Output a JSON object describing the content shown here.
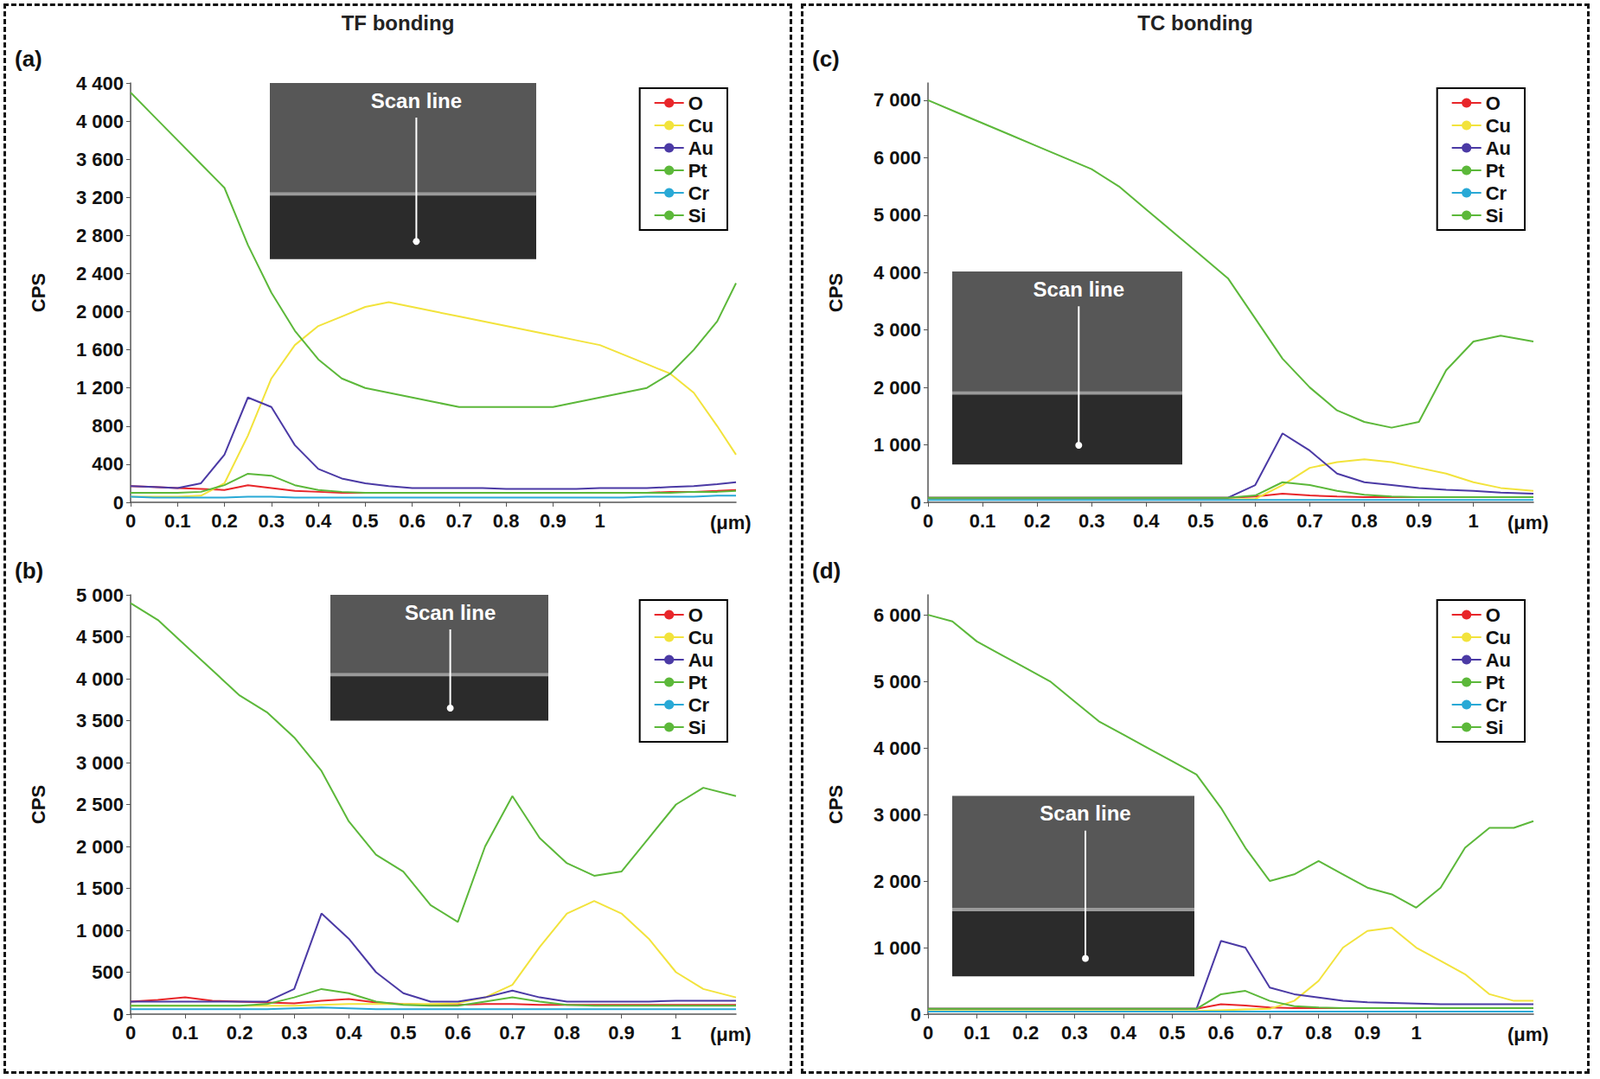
{
  "header": [
    "TF bonding",
    "TC bonding"
  ],
  "chart_data": [
    {
      "type": "line",
      "panel_label": "(a)",
      "inset_label": "Scan line",
      "x_label": "(μm)",
      "y_label": "CPS",
      "grid": false,
      "legend": "top-right",
      "xlim": [
        0,
        1.29
      ],
      "xticks": [
        0,
        0.1,
        0.2,
        0.3,
        0.4,
        0.5,
        0.6,
        0.7,
        0.8,
        0.9,
        1.0
      ],
      "ylim": [
        0,
        4400
      ],
      "yticks": [
        0,
        400,
        800,
        {
          "value": 1200,
          "label": "1 200"
        },
        {
          "value": 1600,
          "label": "1 600"
        },
        {
          "value": 2000,
          "label": "2 000"
        },
        {
          "value": 2400,
          "label": "2 400"
        },
        {
          "value": 2800,
          "label": "2 800"
        },
        {
          "value": 3200,
          "label": "3 200"
        },
        {
          "value": 3600,
          "label": "3 600"
        },
        {
          "value": 4000,
          "label": "4 000"
        },
        {
          "value": 4400,
          "label": "4 400"
        }
      ],
      "x": [
        0,
        0.05,
        0.1,
        0.15,
        0.2,
        0.25,
        0.3,
        0.35,
        0.4,
        0.45,
        0.5,
        0.55,
        0.6,
        0.65,
        0.7,
        0.75,
        0.8,
        0.85,
        0.9,
        0.95,
        1.0,
        1.05,
        1.1,
        1.15,
        1.2,
        1.25,
        1.29
      ],
      "series": [
        {
          "name": "O",
          "color": "#e8262a",
          "values": [
            170,
            160,
            150,
            140,
            130,
            180,
            150,
            120,
            110,
            100,
            100,
            100,
            100,
            100,
            100,
            100,
            100,
            100,
            100,
            100,
            100,
            100,
            100,
            110,
            110,
            120,
            130
          ]
        },
        {
          "name": "Cu",
          "color": "#f2e33c",
          "values": [
            60,
            60,
            60,
            70,
            200,
            700,
            1300,
            1650,
            1850,
            1950,
            2050,
            2100,
            2050,
            2000,
            1950,
            1900,
            1850,
            1800,
            1750,
            1700,
            1650,
            1550,
            1450,
            1350,
            1150,
            800,
            500
          ]
        },
        {
          "name": "Au",
          "color": "#4b3aa5",
          "values": [
            170,
            160,
            150,
            200,
            500,
            1100,
            1000,
            600,
            350,
            250,
            200,
            170,
            150,
            150,
            150,
            150,
            140,
            140,
            140,
            140,
            150,
            150,
            150,
            160,
            170,
            190,
            210
          ]
        },
        {
          "name": "Pt",
          "color": "#5cb83a",
          "values": [
            100,
            100,
            100,
            110,
            180,
            300,
            280,
            180,
            130,
            110,
            100,
            100,
            100,
            100,
            100,
            100,
            100,
            100,
            100,
            100,
            100,
            100,
            100,
            100,
            110,
            110,
            120
          ]
        },
        {
          "name": "Cr",
          "color": "#29a9d6",
          "values": [
            60,
            50,
            50,
            50,
            50,
            60,
            60,
            50,
            50,
            50,
            50,
            50,
            50,
            50,
            50,
            50,
            50,
            50,
            50,
            50,
            50,
            50,
            60,
            60,
            60,
            70,
            70
          ]
        },
        {
          "name": "Si",
          "color": "#5cb83a",
          "values": [
            4300,
            4050,
            3800,
            3550,
            3300,
            2700,
            2200,
            1800,
            1500,
            1300,
            1200,
            1150,
            1100,
            1050,
            1000,
            1000,
            1000,
            1000,
            1000,
            1050,
            1100,
            1150,
            1200,
            1350,
            1600,
            1900,
            2300
          ]
        }
      ]
    },
    {
      "type": "line",
      "panel_label": "(b)",
      "inset_label": "Scan line",
      "x_label": "(μm)",
      "y_label": "CPS",
      "grid": false,
      "legend": "top-right",
      "xlim": [
        0,
        1.11
      ],
      "xticks": [
        0,
        0.1,
        0.2,
        0.3,
        0.4,
        0.5,
        0.6,
        0.7,
        0.8,
        0.9,
        1.0
      ],
      "ylim": [
        0,
        5000
      ],
      "yticks": [
        0,
        500,
        {
          "value": 1000,
          "label": "1 000"
        },
        {
          "value": 1500,
          "label": "1 500"
        },
        {
          "value": 2000,
          "label": "2 000"
        },
        {
          "value": 2500,
          "label": "2 500"
        },
        {
          "value": 3000,
          "label": "3 000"
        },
        {
          "value": 3500,
          "label": "3 500"
        },
        {
          "value": 4000,
          "label": "4 000"
        },
        {
          "value": 4500,
          "label": "4 500"
        },
        {
          "value": 5000,
          "label": "5 000"
        }
      ],
      "x": [
        0,
        0.05,
        0.1,
        0.15,
        0.2,
        0.25,
        0.3,
        0.35,
        0.4,
        0.45,
        0.5,
        0.55,
        0.6,
        0.65,
        0.7,
        0.75,
        0.8,
        0.85,
        0.9,
        0.95,
        1.0,
        1.05,
        1.11
      ],
      "series": [
        {
          "name": "O",
          "color": "#e8262a",
          "values": [
            150,
            170,
            200,
            160,
            150,
            140,
            130,
            160,
            180,
            140,
            120,
            110,
            110,
            120,
            120,
            110,
            110,
            110,
            110,
            110,
            110,
            110,
            110
          ]
        },
        {
          "name": "Cu",
          "color": "#f2e33c",
          "values": [
            100,
            100,
            100,
            100,
            100,
            100,
            100,
            110,
            120,
            120,
            120,
            120,
            130,
            200,
            350,
            800,
            1200,
            1350,
            1200,
            900,
            500,
            300,
            200
          ]
        },
        {
          "name": "Au",
          "color": "#4b3aa5",
          "values": [
            150,
            150,
            150,
            150,
            150,
            150,
            300,
            1200,
            900,
            500,
            250,
            150,
            150,
            200,
            280,
            200,
            150,
            150,
            150,
            150,
            160,
            160,
            160
          ]
        },
        {
          "name": "Pt",
          "color": "#5cb83a",
          "values": [
            100,
            100,
            100,
            100,
            100,
            120,
            200,
            300,
            250,
            150,
            110,
            100,
            100,
            150,
            200,
            150,
            110,
            100,
            100,
            100,
            100,
            100,
            100
          ]
        },
        {
          "name": "Cr",
          "color": "#29a9d6",
          "values": [
            60,
            60,
            60,
            60,
            60,
            60,
            70,
            80,
            70,
            60,
            60,
            60,
            60,
            60,
            60,
            60,
            60,
            60,
            60,
            60,
            60,
            60,
            60
          ]
        },
        {
          "name": "Si",
          "color": "#5cb83a",
          "values": [
            4900,
            4700,
            4400,
            4100,
            3800,
            3600,
            3300,
            2900,
            2300,
            1900,
            1700,
            1300,
            1100,
            2000,
            2600,
            2100,
            1800,
            1650,
            1700,
            2100,
            2500,
            2700,
            2600
          ]
        }
      ]
    },
    {
      "type": "line",
      "panel_label": "(c)",
      "inset_label": "Scan line",
      "x_label": "(μm)",
      "y_label": "CPS",
      "grid": false,
      "legend": "top-right",
      "xlim": [
        0,
        1.11
      ],
      "xticks": [
        0,
        0.1,
        0.2,
        0.3,
        0.4,
        0.5,
        0.6,
        0.7,
        0.8,
        0.9,
        1.0
      ],
      "ylim": [
        0,
        7300
      ],
      "yticks": [
        0,
        {
          "value": 1000,
          "label": "1 000"
        },
        {
          "value": 2000,
          "label": "2 000"
        },
        {
          "value": 3000,
          "label": "3 000"
        },
        {
          "value": 4000,
          "label": "4 000"
        },
        {
          "value": 5000,
          "label": "5 000"
        },
        {
          "value": 6000,
          "label": "6 000"
        },
        {
          "value": 7000,
          "label": "7 000"
        }
      ],
      "x": [
        0,
        0.05,
        0.1,
        0.15,
        0.2,
        0.25,
        0.3,
        0.35,
        0.4,
        0.45,
        0.5,
        0.55,
        0.6,
        0.65,
        0.7,
        0.75,
        0.8,
        0.85,
        0.9,
        0.95,
        1.0,
        1.05,
        1.11
      ],
      "series": [
        {
          "name": "O",
          "color": "#e8262a",
          "values": [
            80,
            80,
            80,
            80,
            80,
            80,
            80,
            80,
            80,
            80,
            80,
            80,
            100,
            150,
            120,
            100,
            90,
            90,
            90,
            90,
            90,
            90,
            90
          ]
        },
        {
          "name": "Cu",
          "color": "#f2e33c",
          "values": [
            50,
            50,
            50,
            50,
            50,
            50,
            50,
            50,
            50,
            50,
            50,
            50,
            60,
            300,
            600,
            700,
            750,
            700,
            600,
            500,
            350,
            250,
            200
          ]
        },
        {
          "name": "Au",
          "color": "#4b3aa5",
          "values": [
            80,
            80,
            80,
            80,
            80,
            80,
            80,
            80,
            80,
            80,
            80,
            80,
            300,
            1200,
            900,
            500,
            350,
            300,
            250,
            220,
            200,
            170,
            150
          ]
        },
        {
          "name": "Pt",
          "color": "#5cb83a",
          "values": [
            80,
            80,
            80,
            80,
            80,
            80,
            80,
            80,
            80,
            80,
            80,
            80,
            120,
            350,
            300,
            200,
            130,
            100,
            90,
            90,
            90,
            90,
            90
          ]
        },
        {
          "name": "Cr",
          "color": "#29a9d6",
          "values": [
            40,
            40,
            40,
            40,
            40,
            40,
            40,
            40,
            40,
            40,
            40,
            40,
            40,
            40,
            40,
            40,
            40,
            40,
            40,
            40,
            40,
            40,
            40
          ]
        },
        {
          "name": "Si",
          "color": "#5cb83a",
          "values": [
            7000,
            6800,
            6600,
            6400,
            6200,
            6000,
            5800,
            5500,
            5100,
            4700,
            4300,
            3900,
            3200,
            2500,
            2000,
            1600,
            1400,
            1300,
            1400,
            2300,
            2800,
            2900,
            2800
          ]
        }
      ]
    },
    {
      "type": "line",
      "panel_label": "(d)",
      "inset_label": "Scan line",
      "x_label": "(μm)",
      "y_label": "CPS",
      "grid": false,
      "legend": "top-right",
      "xlim": [
        0,
        1.24
      ],
      "xticks": [
        0,
        0.1,
        0.2,
        0.3,
        0.4,
        0.5,
        0.6,
        0.7,
        0.8,
        0.9,
        1.0
      ],
      "ylim": [
        0,
        6300
      ],
      "yticks": [
        0,
        {
          "value": 1000,
          "label": "1 000"
        },
        {
          "value": 2000,
          "label": "2 000"
        },
        {
          "value": 3000,
          "label": "3 000"
        },
        {
          "value": 4000,
          "label": "4 000"
        },
        {
          "value": 5000,
          "label": "5 000"
        },
        {
          "value": 6000,
          "label": "6 000"
        }
      ],
      "x": [
        0,
        0.05,
        0.1,
        0.15,
        0.2,
        0.25,
        0.3,
        0.35,
        0.4,
        0.45,
        0.5,
        0.55,
        0.6,
        0.65,
        0.7,
        0.75,
        0.8,
        0.85,
        0.9,
        0.95,
        1.0,
        1.05,
        1.1,
        1.15,
        1.2,
        1.24
      ],
      "series": [
        {
          "name": "O",
          "color": "#e8262a",
          "values": [
            80,
            80,
            80,
            80,
            80,
            80,
            80,
            80,
            80,
            80,
            80,
            80,
            150,
            130,
            100,
            90,
            90,
            90,
            90,
            90,
            90,
            90,
            90,
            90,
            90,
            90
          ]
        },
        {
          "name": "Cu",
          "color": "#f2e33c",
          "values": [
            50,
            50,
            50,
            50,
            50,
            50,
            50,
            50,
            50,
            50,
            50,
            50,
            60,
            70,
            80,
            200,
            500,
            1000,
            1250,
            1300,
            1000,
            800,
            600,
            300,
            200,
            200
          ]
        },
        {
          "name": "Au",
          "color": "#4b3aa5",
          "values": [
            80,
            80,
            80,
            80,
            80,
            80,
            80,
            80,
            80,
            80,
            80,
            80,
            1100,
            1000,
            400,
            300,
            250,
            200,
            180,
            170,
            160,
            150,
            150,
            150,
            150,
            150
          ]
        },
        {
          "name": "Pt",
          "color": "#5cb83a",
          "values": [
            80,
            80,
            80,
            80,
            80,
            80,
            80,
            80,
            80,
            80,
            80,
            80,
            300,
            350,
            200,
            120,
            100,
            90,
            90,
            90,
            90,
            90,
            90,
            90,
            90,
            90
          ]
        },
        {
          "name": "Cr",
          "color": "#29a9d6",
          "values": [
            40,
            40,
            40,
            40,
            40,
            40,
            40,
            40,
            40,
            40,
            40,
            40,
            40,
            40,
            40,
            40,
            40,
            40,
            40,
            40,
            40,
            40,
            40,
            40,
            40,
            40
          ]
        },
        {
          "name": "Si",
          "color": "#5cb83a",
          "values": [
            6000,
            5900,
            5600,
            5400,
            5200,
            5000,
            4700,
            4400,
            4200,
            4000,
            3800,
            3600,
            3100,
            2500,
            2000,
            2100,
            2300,
            2100,
            1900,
            1800,
            1600,
            1900,
            2500,
            2800,
            2800,
            2900
          ]
        }
      ]
    }
  ]
}
